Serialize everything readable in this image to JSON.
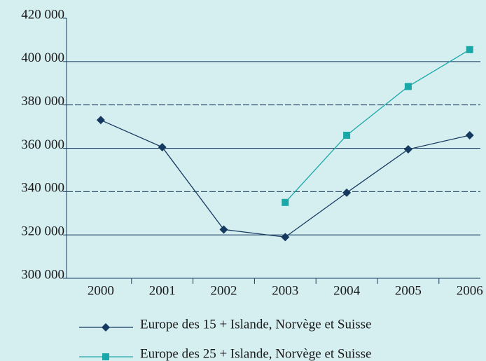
{
  "chart_data": {
    "type": "line",
    "categories": [
      "2000",
      "2001",
      "2002",
      "2003",
      "2004",
      "2005",
      "2006"
    ],
    "series": [
      {
        "name": "Europe des 15 + Islande, Norvège et Suisse",
        "color": "#163a5f",
        "marker": "diamond",
        "values": [
          373000,
          360500,
          322500,
          319000,
          339500,
          359500,
          366000
        ]
      },
      {
        "name": "Europe des 25 + Islande, Norvège et Suisse",
        "color": "#1aa7a7",
        "marker": "square",
        "values": [
          null,
          null,
          null,
          335000,
          366000,
          388500,
          405500
        ]
      }
    ],
    "ylim": [
      300000,
      420000
    ],
    "yticks": [
      {
        "value": 300000,
        "label": "300 000"
      },
      {
        "value": 320000,
        "label": "320 000"
      },
      {
        "value": 340000,
        "label": "340 000"
      },
      {
        "value": 360000,
        "label": "360 000"
      },
      {
        "value": 380000,
        "label": "380 000"
      },
      {
        "value": 400000,
        "label": "400 000"
      },
      {
        "value": 420000,
        "label": "420 000"
      }
    ],
    "grid": true
  }
}
